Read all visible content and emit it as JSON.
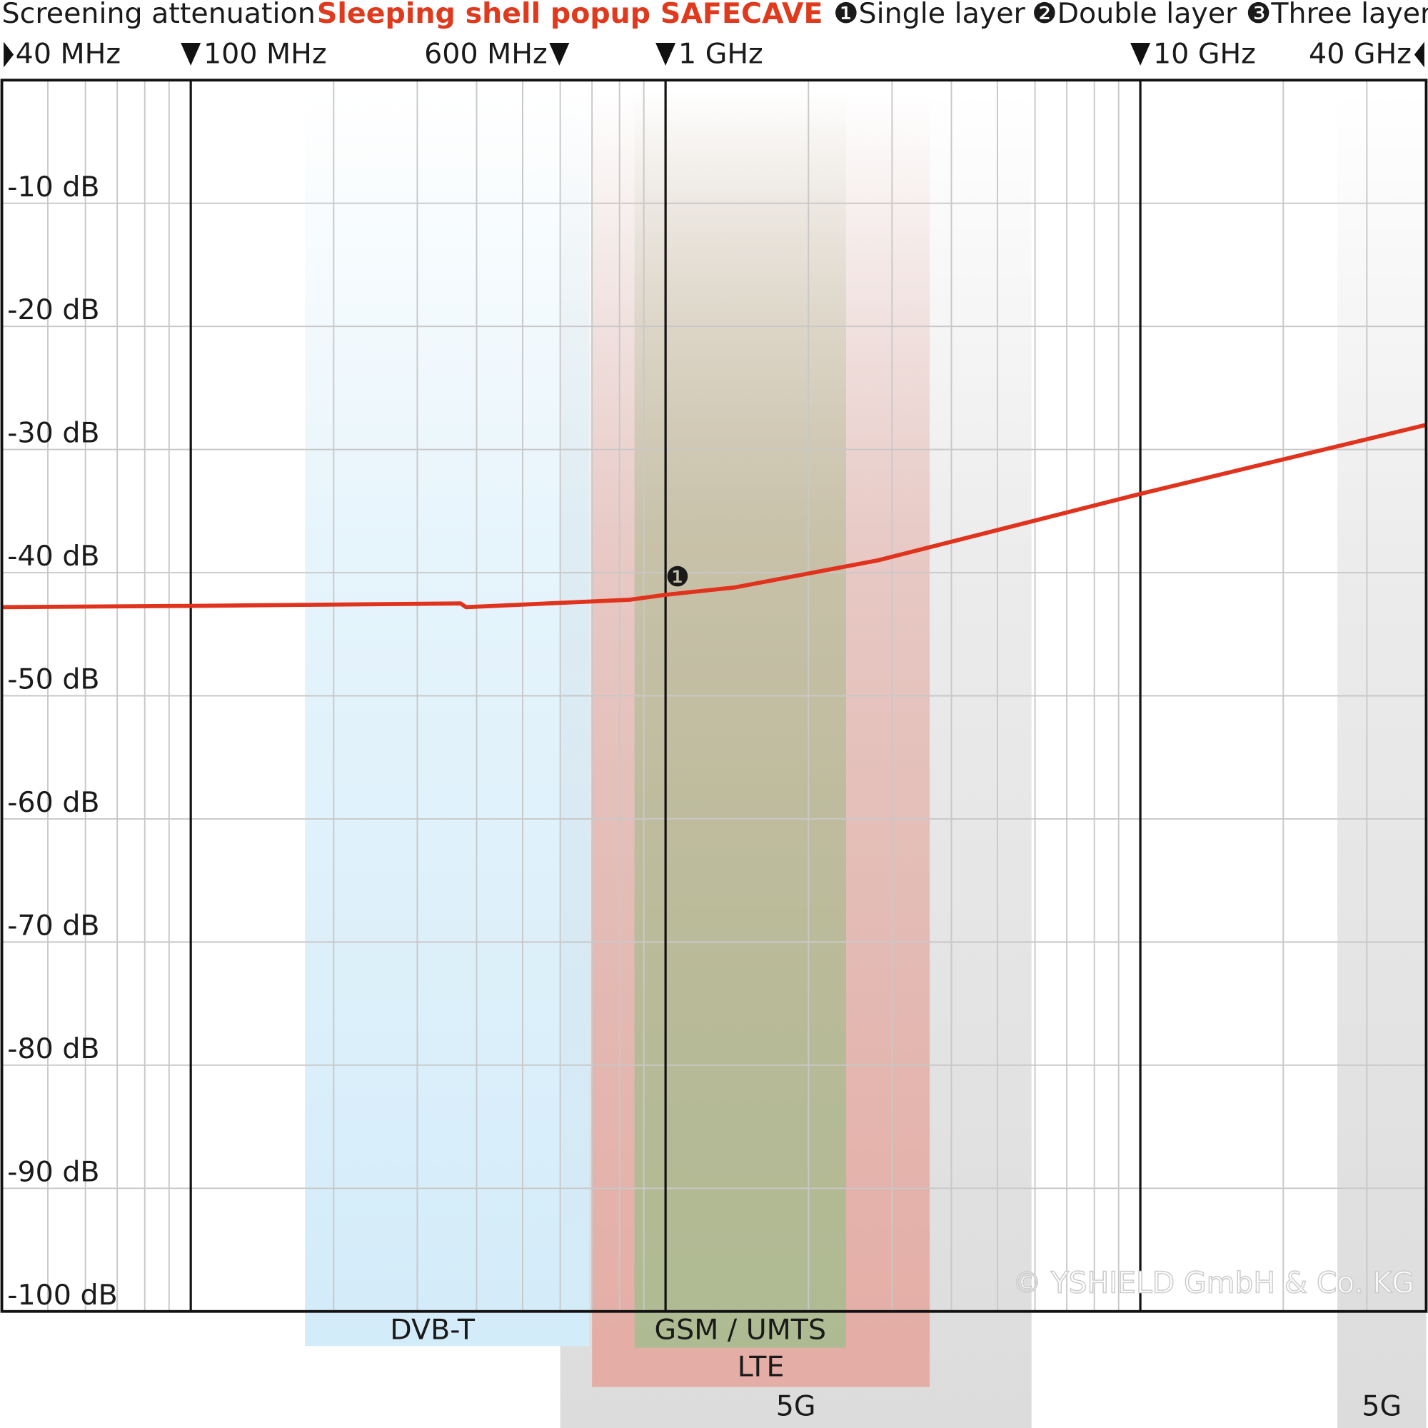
{
  "chart_data": {
    "type": "line",
    "title": "Screening attenuation",
    "subtitle": "Sleeping shell popup SAFECAVE",
    "legend_notes": [
      "❶Single layer",
      "❷Double layer",
      "❸Three layer"
    ],
    "log_x": true,
    "xlim": [
      40,
      40000
    ],
    "xticks": [
      {
        "value": 40,
        "label": "40 MHz"
      },
      {
        "value": 100,
        "label": "100 MHz"
      },
      {
        "value": 600,
        "label": "600 MHz"
      },
      {
        "value": 1000,
        "label": "1 GHz"
      },
      {
        "value": 10000,
        "label": "10 GHz"
      },
      {
        "value": 40000,
        "label": "40 GHz"
      }
    ],
    "minor_xticks": [
      50,
      60,
      70,
      80,
      90,
      200,
      300,
      400,
      500,
      600,
      700,
      800,
      900,
      2000,
      3000,
      4000,
      5000,
      6000,
      7000,
      8000,
      9000,
      20000,
      30000
    ],
    "ylim": [
      -100,
      0
    ],
    "yticks": [
      {
        "value": -10,
        "label": "-10 dB"
      },
      {
        "value": -20,
        "label": "-20 dB"
      },
      {
        "value": -30,
        "label": "-30 dB"
      },
      {
        "value": -40,
        "label": "-40 dB"
      },
      {
        "value": -50,
        "label": "-50 dB"
      },
      {
        "value": -60,
        "label": "-60 dB"
      },
      {
        "value": -70,
        "label": "-70 dB"
      },
      {
        "value": -80,
        "label": "-80 dB"
      },
      {
        "value": -90,
        "label": "-90 dB"
      },
      {
        "value": -100,
        "label": "-100 dB"
      }
    ],
    "grid": true,
    "series": [
      {
        "name": "Single layer",
        "color": "#e0321c",
        "x": [
          40,
          100,
          370,
          380,
          840,
          1000,
          1400,
          2800,
          10000,
          40000
        ],
        "values": [
          -42.8,
          -42.7,
          -42.5,
          -42.8,
          -42.2,
          -41.8,
          -41.2,
          -39,
          -33.6,
          -28
        ]
      }
    ],
    "annotations": [
      {
        "text": "❶",
        "x": 1060,
        "y": -40.5
      }
    ],
    "bands": [
      {
        "label": "5G",
        "range": [
          600,
          5900
        ],
        "color": "#dcdcdc"
      },
      {
        "label": "5G",
        "range": [
          26000,
          40000
        ],
        "color": "#dcdcdc"
      },
      {
        "label": "DVB-T",
        "range": [
          174,
          690
        ],
        "color": "#d3ecf9"
      },
      {
        "label": "LTE",
        "range": [
          700,
          3600
        ],
        "color": "#e4ada5"
      },
      {
        "label": "GSM / UMTS",
        "range": [
          860,
          2400
        ],
        "color": "#aebb92"
      }
    ],
    "watermark": "© YSHIELD GmbH & Co. KG"
  }
}
